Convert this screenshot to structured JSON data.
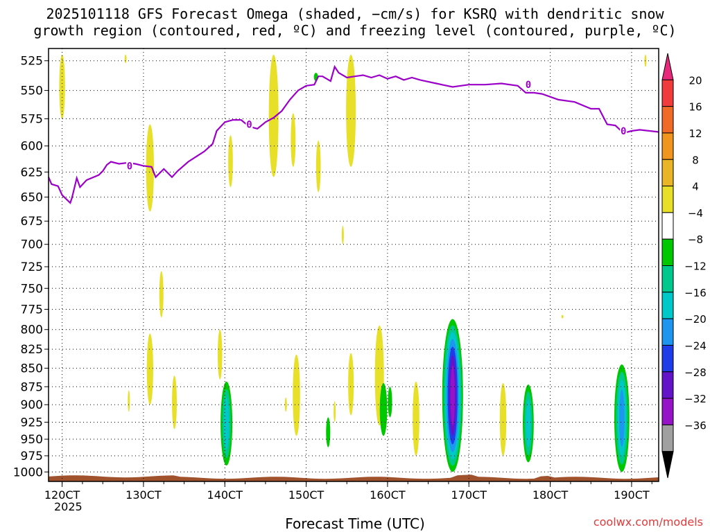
{
  "page": {
    "title_line1": "2025101118 GFS Forecast Omega (shaded, −cm/s) for KSRQ with dendritic snow",
    "title_line2": "growth region (contoured, red, ºC) and freezing level (contoured, purple, ºC)",
    "credit": "coolwx.com/models",
    "year_label": "2025"
  },
  "chart_data": {
    "type": "heatmap",
    "title": "2025101118 GFS Forecast Omega (shaded, −cm/s) for KSRQ with dendritic snow growth region (contoured, red, ºC) and freezing level (contoured, purple, ºC)",
    "xlabel": "Forecast Time (UTC)",
    "ylabel": "",
    "x_ticks": [
      "120CT",
      "130CT",
      "140CT",
      "150CT",
      "160CT",
      "170CT",
      "180CT",
      "190CT"
    ],
    "xlim": [
      11.833,
      19.333
    ],
    "y_ticks": [
      525,
      550,
      575,
      600,
      625,
      650,
      675,
      700,
      725,
      750,
      775,
      800,
      825,
      850,
      875,
      900,
      925,
      950,
      975,
      1000
    ],
    "ylim": [
      1015,
      515
    ],
    "y_scale": "log-pressure",
    "grid": true,
    "colorbar": {
      "labels": [
        "20",
        "16",
        "12",
        "8",
        "4",
        "−4",
        "−8",
        "−12",
        "−16",
        "−20",
        "−24",
        "−28",
        "−32",
        "−36"
      ],
      "colors": [
        "#e8287a",
        "#f03c3c",
        "#f06a28",
        "#f0961e",
        "#e8b428",
        "#e8e028",
        "#ffffff",
        "#00c800",
        "#00c88c",
        "#00c8c8",
        "#1e96f0",
        "#1e3ce8",
        "#6414c8",
        "#9614c8",
        "#a0a0a0",
        "#000000"
      ]
    },
    "freezing_level": {
      "label": "0",
      "color": "#9b00c8",
      "points": [
        [
          11.833,
          630
        ],
        [
          11.87,
          637
        ],
        [
          11.95,
          639
        ],
        [
          12.0,
          648
        ],
        [
          12.05,
          652
        ],
        [
          12.1,
          656
        ],
        [
          12.12,
          651
        ],
        [
          12.15,
          641
        ],
        [
          12.18,
          631
        ],
        [
          12.22,
          640
        ],
        [
          12.3,
          633
        ],
        [
          12.45,
          628
        ],
        [
          12.5,
          624
        ],
        [
          12.55,
          618
        ],
        [
          12.6,
          615
        ],
        [
          12.7,
          617
        ],
        [
          12.8,
          616
        ],
        [
          12.9,
          617
        ],
        [
          13.0,
          619
        ],
        [
          13.1,
          620
        ],
        [
          13.15,
          630
        ],
        [
          13.25,
          622
        ],
        [
          13.35,
          630
        ],
        [
          13.42,
          624
        ],
        [
          13.55,
          615
        ],
        [
          13.65,
          610
        ],
        [
          13.75,
          605
        ],
        [
          13.85,
          598
        ],
        [
          13.9,
          586
        ],
        [
          14.0,
          578
        ],
        [
          14.1,
          576
        ],
        [
          14.2,
          576
        ],
        [
          14.3,
          582
        ],
        [
          14.4,
          584
        ],
        [
          14.5,
          578
        ],
        [
          14.6,
          574
        ],
        [
          14.7,
          568
        ],
        [
          14.8,
          558
        ],
        [
          14.9,
          550
        ],
        [
          15.0,
          546
        ],
        [
          15.1,
          545
        ],
        [
          15.15,
          538
        ],
        [
          15.2,
          538
        ],
        [
          15.3,
          542
        ],
        [
          15.35,
          530
        ],
        [
          15.4,
          535
        ],
        [
          15.5,
          539
        ],
        [
          15.6,
          538
        ],
        [
          15.7,
          537
        ],
        [
          15.8,
          539
        ],
        [
          15.9,
          537
        ],
        [
          16.0,
          540
        ],
        [
          16.1,
          538
        ],
        [
          16.2,
          541
        ],
        [
          16.3,
          539
        ],
        [
          16.4,
          541
        ],
        [
          16.6,
          544
        ],
        [
          16.8,
          547
        ],
        [
          17.0,
          545
        ],
        [
          17.2,
          545
        ],
        [
          17.4,
          544
        ],
        [
          17.6,
          546
        ],
        [
          17.7,
          552
        ],
        [
          17.8,
          552
        ],
        [
          17.9,
          553
        ],
        [
          18.1,
          558
        ],
        [
          18.3,
          560
        ],
        [
          18.5,
          566
        ],
        [
          18.6,
          566
        ],
        [
          18.7,
          580
        ],
        [
          18.8,
          581
        ],
        [
          18.9,
          588
        ],
        [
          19.0,
          586
        ],
        [
          19.1,
          585
        ],
        [
          19.333,
          587
        ]
      ]
    },
    "positive_omega_regions": [
      {
        "x": 12.0,
        "p_top": 520,
        "p_bottom": 575,
        "value": 4
      },
      {
        "x": 12.78,
        "p_top": 520,
        "p_bottom": 527,
        "value": 4
      },
      {
        "x": 13.08,
        "p_top": 580,
        "p_bottom": 665,
        "value": 4
      },
      {
        "x": 13.22,
        "p_top": 730,
        "p_bottom": 785,
        "value": 4
      },
      {
        "x": 13.08,
        "p_top": 805,
        "p_bottom": 900,
        "value": 4
      },
      {
        "x": 12.82,
        "p_top": 880,
        "p_bottom": 910,
        "value": 4
      },
      {
        "x": 13.38,
        "p_top": 860,
        "p_bottom": 935,
        "value": 4
      },
      {
        "x": 14.07,
        "p_top": 590,
        "p_bottom": 640,
        "value": 4
      },
      {
        "x": 14.6,
        "p_top": 520,
        "p_bottom": 630,
        "value": 4
      },
      {
        "x": 14.84,
        "p_top": 570,
        "p_bottom": 620,
        "value": 4
      },
      {
        "x": 15.15,
        "p_top": 595,
        "p_bottom": 645,
        "value": 4
      },
      {
        "x": 15.45,
        "p_top": 680,
        "p_bottom": 700,
        "value": 4
      },
      {
        "x": 15.55,
        "p_top": 520,
        "p_bottom": 620,
        "value": 4
      },
      {
        "x": 13.94,
        "p_top": 800,
        "p_bottom": 865,
        "value": 4
      },
      {
        "x": 14.88,
        "p_top": 832,
        "p_bottom": 945,
        "value": 4
      },
      {
        "x": 14.75,
        "p_top": 890,
        "p_bottom": 910,
        "value": 4
      },
      {
        "x": 15.35,
        "p_top": 895,
        "p_bottom": 925,
        "value": 4
      },
      {
        "x": 15.55,
        "p_top": 830,
        "p_bottom": 915,
        "value": 4
      },
      {
        "x": 15.9,
        "p_top": 795,
        "p_bottom": 930,
        "value": 4
      },
      {
        "x": 16.35,
        "p_top": 868,
        "p_bottom": 975,
        "value": 4
      },
      {
        "x": 17.42,
        "p_top": 870,
        "p_bottom": 975,
        "value": 4
      },
      {
        "x": 18.15,
        "p_top": 782,
        "p_bottom": 786,
        "value": 4
      },
      {
        "x": 19.17,
        "p_top": 520,
        "p_bottom": 530,
        "value": 4
      }
    ],
    "negative_omega_regions": [
      {
        "x": 14.02,
        "p_top": 868,
        "p_bottom": 990,
        "min_value": -12
      },
      {
        "x": 15.27,
        "p_top": 918,
        "p_bottom": 962,
        "min_value": -4
      },
      {
        "x": 15.12,
        "p_top": 535,
        "p_bottom": 542,
        "min_value": -4
      },
      {
        "x": 15.95,
        "p_top": 870,
        "p_bottom": 945,
        "min_value": -4
      },
      {
        "x": 16.03,
        "p_top": 875,
        "p_bottom": 918,
        "min_value": -4
      },
      {
        "x": 16.8,
        "p_top": 787,
        "p_bottom": 1000,
        "min_value": -28
      },
      {
        "x": 17.73,
        "p_top": 872,
        "p_bottom": 985,
        "min_value": -12
      },
      {
        "x": 18.88,
        "p_top": 845,
        "p_bottom": 1000,
        "min_value": -16
      }
    ],
    "terrain_surface": {
      "color": "#a0522d",
      "p_top_approx": 1007
    }
  }
}
